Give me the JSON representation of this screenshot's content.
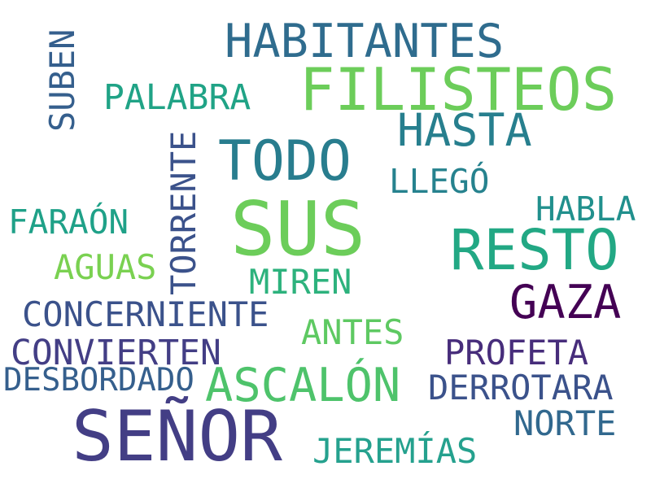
{
  "words": [
    {
      "text": "SUS",
      "color": "#6ccd5a"
    },
    {
      "text": "SEÑOR",
      "color": "#433e85"
    },
    {
      "text": "FILISTEOS",
      "color": "#6ccd5a"
    },
    {
      "text": "RESTO",
      "color": "#22a884"
    },
    {
      "text": "TODO",
      "color": "#287d8e"
    },
    {
      "text": "HABITANTES",
      "color": "#2f6c8e"
    },
    {
      "text": "ASCALÓN",
      "color": "#4ec36b"
    },
    {
      "text": "GAZA",
      "color": "#440154"
    },
    {
      "text": "HASTA",
      "color": "#277f8e"
    },
    {
      "text": "TORRENTE",
      "color": "#3b528b"
    },
    {
      "text": "SUBEN",
      "color": "#355f8d"
    },
    {
      "text": "PALABRA",
      "color": "#20a386"
    },
    {
      "text": "LLEGÓ",
      "color": "#26828e"
    },
    {
      "text": "HABLA",
      "color": "#21908d"
    },
    {
      "text": "FARAÓN",
      "color": "#1fa188"
    },
    {
      "text": "AGUAS",
      "color": "#7ad151"
    },
    {
      "text": "MIREN",
      "color": "#2db27d"
    },
    {
      "text": "CONCERNIENTE",
      "color": "#3b528b"
    },
    {
      "text": "ANTES",
      "color": "#5ec962"
    },
    {
      "text": "CONVIERTEN",
      "color": "#433e85"
    },
    {
      "text": "PROFETA",
      "color": "#472d7b"
    },
    {
      "text": "DESBORDADO",
      "color": "#355f8d"
    },
    {
      "text": "DERROTARA",
      "color": "#3b528b"
    },
    {
      "text": "NORTE",
      "color": "#31688e"
    },
    {
      "text": "JEREMÍAS",
      "color": "#25a18e"
    }
  ]
}
